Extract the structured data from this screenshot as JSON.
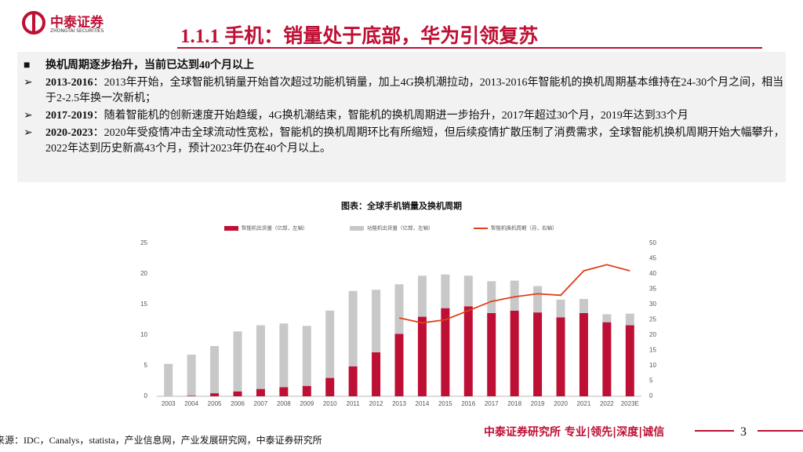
{
  "header": {
    "logo_cn": "中泰证券",
    "logo_en": "ZHONGTAI SECURITIES",
    "title": "1.1.1 手机：销量处于底部，华为引领复苏"
  },
  "summary": {
    "lead": "换机周期逐步抬升，当前已达到40个月以上",
    "bullets": [
      {
        "head": "2013-2016",
        "text": "：2013年开始，全球智能机销量开始首次超过功能机销量，加上4G换机潮拉动，2013-2016年智能机的换机周期基本维持在24-30个月之间，相当于2-2.5年换一次新机；"
      },
      {
        "head": "2017-2019",
        "text": "：随着智能机的创新速度开始趋缓，4G换机潮结束，智能机的换机周期进一步抬升，2017年超过30个月，2019年达到33个月"
      },
      {
        "head": "2020-2023",
        "text": "：2020年受疫情冲击全球流动性宽松，智能机的换机周期环比有所缩短，但后续疫情扩散压制了消费需求，全球智能机换机周期开始大幅攀升，2022年达到历史新高43个月，预计2023年仍在40个月以上。"
      }
    ]
  },
  "chart_data": {
    "type": "bar",
    "stacked": true,
    "title": "图表：全球手机销量及换机周期",
    "categories": [
      "2003",
      "2004",
      "2005",
      "2006",
      "2007",
      "2008",
      "2009",
      "2010",
      "2011",
      "2012",
      "2013",
      "2014",
      "2015",
      "2016",
      "2017",
      "2018",
      "2019",
      "2020",
      "2021",
      "2022",
      "2023E"
    ],
    "series": [
      {
        "name": "智能机出货量（亿部，左轴）",
        "color": "#be0f34",
        "values": [
          0,
          0.1,
          0.5,
          0.8,
          1.2,
          1.5,
          1.7,
          3.0,
          4.9,
          7.2,
          10.2,
          13.0,
          14.4,
          14.7,
          13.6,
          14.0,
          13.7,
          12.9,
          13.6,
          12.1,
          11.6
        ]
      },
      {
        "name": "功能机出货量（亿部，左轴）",
        "color": "#c8c8c8",
        "values": [
          5.3,
          6.7,
          7.7,
          9.8,
          10.4,
          10.4,
          9.8,
          11.0,
          12.3,
          10.2,
          8.1,
          6.7,
          5.5,
          5.0,
          5.2,
          4.9,
          4.3,
          2.9,
          2.3,
          1.3,
          1.9
        ]
      },
      {
        "name": "智能机换机周期（月，右轴）",
        "color": "#e0401a",
        "type": "line",
        "axis": "y2",
        "values": [
          null,
          null,
          null,
          null,
          null,
          null,
          null,
          null,
          null,
          null,
          25.6,
          24,
          25,
          28,
          31,
          32.5,
          33.5,
          33,
          41,
          43,
          41
        ]
      }
    ],
    "ylim": [
      0,
      25
    ],
    "yticks": [
      0,
      5,
      10,
      15,
      20,
      25
    ],
    "y2lim": [
      0,
      50
    ],
    "y2ticks": [
      0,
      5,
      10,
      15,
      20,
      25,
      30,
      35,
      40,
      45,
      50
    ]
  },
  "footer": {
    "source": "来源：IDC，Canalys，statista，产业信息网，产业发展研究网，中泰证券研究所",
    "brand": "中泰证券研究所 专业|领先|深度|诚信",
    "page": "3"
  }
}
